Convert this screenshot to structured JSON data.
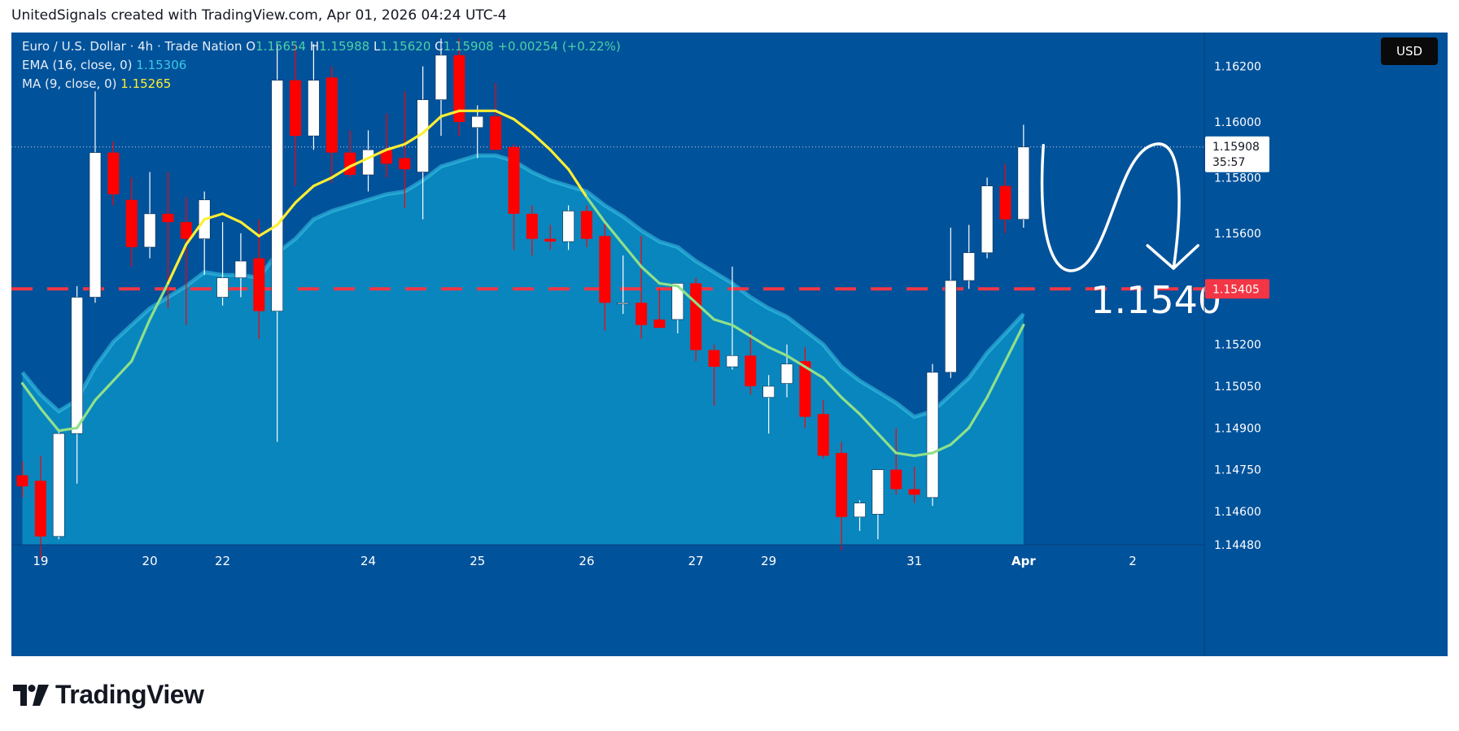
{
  "caption": "UnitedSignals created with TradingView.com, Apr 01, 2026 04:24 UTC-4",
  "brand": "TradingView",
  "currency_button": "USD",
  "legend": {
    "symbol": "Euro / U.S. Dollar · 4h · Trade Nation",
    "o_label": "O",
    "o": "1.15654",
    "h_label": "H",
    "h": "1.15988",
    "l_label": "L",
    "l": "1.15620",
    "c_label": "C",
    "c": "1.15908",
    "change": "+0.00254 (+0.22%)",
    "ema_label": "EMA (16, close, 0)",
    "ema_value": "1.15306",
    "ma_label": "MA (9, close, 0)",
    "ma_value": "1.15265"
  },
  "annotation": {
    "target_text": "1.1540"
  },
  "colors": {
    "background": "#00529b",
    "up_candle": "#ffffff",
    "down_candle": "#ff0000",
    "ema": "#3cc8e8",
    "ma_above": "#ffee33",
    "ma_below": "#90e08a",
    "level_line": "#f23645",
    "price_tag": "#f23645"
  },
  "chart_data": {
    "type": "candlestick",
    "symbol": "EURUSD",
    "timeframe": "4h",
    "ylim": [
      1.144,
      1.163
    ],
    "y_ticks": [
      "1.16200",
      "1.16000",
      "1.15800",
      "1.15600",
      "1.15200",
      "1.15050",
      "1.14900",
      "1.14750",
      "1.14600",
      "1.14480"
    ],
    "x_ticks": [
      {
        "label": "19",
        "index": 1
      },
      {
        "label": "20",
        "index": 7
      },
      {
        "label": "22",
        "index": 11
      },
      {
        "label": "24",
        "index": 19
      },
      {
        "label": "25",
        "index": 25
      },
      {
        "label": "26",
        "index": 31
      },
      {
        "label": "27",
        "index": 37
      },
      {
        "label": "29",
        "index": 41
      },
      {
        "label": "31",
        "index": 49
      },
      {
        "label": "Apr",
        "index": 55
      },
      {
        "label": "2",
        "index": 61
      }
    ],
    "candles": [
      {
        "o": 1.1473,
        "h": 1.1478,
        "l": 1.1465,
        "c": 1.1469
      },
      {
        "o": 1.1471,
        "h": 1.148,
        "l": 1.1443,
        "c": 1.1451
      },
      {
        "o": 1.1451,
        "h": 1.1489,
        "l": 1.145,
        "c": 1.1488
      },
      {
        "o": 1.1488,
        "h": 1.1541,
        "l": 1.147,
        "c": 1.1537
      },
      {
        "o": 1.1537,
        "h": 1.1611,
        "l": 1.1535,
        "c": 1.1589
      },
      {
        "o": 1.1589,
        "h": 1.1593,
        "l": 1.157,
        "c": 1.1574
      },
      {
        "o": 1.1572,
        "h": 1.158,
        "l": 1.1548,
        "c": 1.1555
      },
      {
        "o": 1.1555,
        "h": 1.1582,
        "l": 1.1551,
        "c": 1.1567
      },
      {
        "o": 1.1567,
        "h": 1.1582,
        "l": 1.1533,
        "c": 1.1564
      },
      {
        "o": 1.1564,
        "h": 1.1573,
        "l": 1.1527,
        "c": 1.1558
      },
      {
        "o": 1.1558,
        "h": 1.1575,
        "l": 1.1545,
        "c": 1.1572
      },
      {
        "o": 1.1537,
        "h": 1.1564,
        "l": 1.1534,
        "c": 1.1544
      },
      {
        "o": 1.1544,
        "h": 1.156,
        "l": 1.1537,
        "c": 1.155
      },
      {
        "o": 1.1551,
        "h": 1.1565,
        "l": 1.1522,
        "c": 1.1532
      },
      {
        "o": 1.1532,
        "h": 1.1628,
        "l": 1.1485,
        "c": 1.1615
      },
      {
        "o": 1.1615,
        "h": 1.1628,
        "l": 1.1577,
        "c": 1.1595
      },
      {
        "o": 1.1595,
        "h": 1.1628,
        "l": 1.159,
        "c": 1.1615
      },
      {
        "o": 1.1616,
        "h": 1.162,
        "l": 1.1578,
        "c": 1.1589
      },
      {
        "o": 1.1589,
        "h": 1.1597,
        "l": 1.158,
        "c": 1.1581
      },
      {
        "o": 1.1581,
        "h": 1.1597,
        "l": 1.1575,
        "c": 1.159
      },
      {
        "o": 1.159,
        "h": 1.1603,
        "l": 1.158,
        "c": 1.1585
      },
      {
        "o": 1.1587,
        "h": 1.1611,
        "l": 1.1569,
        "c": 1.1583
      },
      {
        "o": 1.1582,
        "h": 1.162,
        "l": 1.1565,
        "c": 1.1608
      },
      {
        "o": 1.1608,
        "h": 1.163,
        "l": 1.1595,
        "c": 1.1624
      },
      {
        "o": 1.1624,
        "h": 1.163,
        "l": 1.1595,
        "c": 1.16
      },
      {
        "o": 1.1598,
        "h": 1.1606,
        "l": 1.1587,
        "c": 1.1602
      },
      {
        "o": 1.1602,
        "h": 1.1614,
        "l": 1.159,
        "c": 1.159
      },
      {
        "o": 1.1591,
        "h": 1.1592,
        "l": 1.1554,
        "c": 1.1567
      },
      {
        "o": 1.1567,
        "h": 1.157,
        "l": 1.1552,
        "c": 1.1558
      },
      {
        "o": 1.1558,
        "h": 1.1563,
        "l": 1.1554,
        "c": 1.1557
      },
      {
        "o": 1.1557,
        "h": 1.157,
        "l": 1.1554,
        "c": 1.1568
      },
      {
        "o": 1.1568,
        "h": 1.157,
        "l": 1.1555,
        "c": 1.1558
      },
      {
        "o": 1.1559,
        "h": 1.1565,
        "l": 1.1525,
        "c": 1.1535
      },
      {
        "o": 1.1535,
        "h": 1.1552,
        "l": 1.1531,
        "c": 1.1535
      },
      {
        "o": 1.1535,
        "h": 1.1559,
        "l": 1.1522,
        "c": 1.1527
      },
      {
        "o": 1.1529,
        "h": 1.154,
        "l": 1.1526,
        "c": 1.1526
      },
      {
        "o": 1.1529,
        "h": 1.1542,
        "l": 1.1524,
        "c": 1.1542
      },
      {
        "o": 1.1542,
        "h": 1.1544,
        "l": 1.1514,
        "c": 1.1518
      },
      {
        "o": 1.1518,
        "h": 1.152,
        "l": 1.1498,
        "c": 1.1512
      },
      {
        "o": 1.1512,
        "h": 1.1548,
        "l": 1.1511,
        "c": 1.1516
      },
      {
        "o": 1.1516,
        "h": 1.1525,
        "l": 1.1502,
        "c": 1.1505
      },
      {
        "o": 1.1501,
        "h": 1.1509,
        "l": 1.1488,
        "c": 1.1505
      },
      {
        "o": 1.1506,
        "h": 1.152,
        "l": 1.1501,
        "c": 1.1513
      },
      {
        "o": 1.1514,
        "h": 1.1519,
        "l": 1.149,
        "c": 1.1494
      },
      {
        "o": 1.1495,
        "h": 1.15,
        "l": 1.1479,
        "c": 1.148
      },
      {
        "o": 1.1481,
        "h": 1.1485,
        "l": 1.1446,
        "c": 1.1458
      },
      {
        "o": 1.1458,
        "h": 1.1464,
        "l": 1.1453,
        "c": 1.1463
      },
      {
        "o": 1.1459,
        "h": 1.1475,
        "l": 1.145,
        "c": 1.1475
      },
      {
        "o": 1.1475,
        "h": 1.149,
        "l": 1.1466,
        "c": 1.1468
      },
      {
        "o": 1.1468,
        "h": 1.1476,
        "l": 1.1463,
        "c": 1.1466
      },
      {
        "o": 1.1465,
        "h": 1.1513,
        "l": 1.1462,
        "c": 1.151
      },
      {
        "o": 1.151,
        "h": 1.1562,
        "l": 1.1508,
        "c": 1.1543
      },
      {
        "o": 1.1543,
        "h": 1.1563,
        "l": 1.154,
        "c": 1.1553
      },
      {
        "o": 1.1553,
        "h": 1.158,
        "l": 1.1551,
        "c": 1.1577
      },
      {
        "o": 1.1577,
        "h": 1.1585,
        "l": 1.156,
        "c": 1.1565
      },
      {
        "o": 1.1565,
        "h": 1.1599,
        "l": 1.1562,
        "c": 1.1591
      }
    ],
    "ema_16": [
      1.151,
      1.1502,
      1.1496,
      1.15,
      1.1512,
      1.1521,
      1.1527,
      1.1533,
      1.1537,
      1.1541,
      1.1546,
      1.1545,
      1.1545,
      1.1544,
      1.1553,
      1.1558,
      1.1565,
      1.1568,
      1.157,
      1.1572,
      1.1574,
      1.1575,
      1.1579,
      1.1584,
      1.1586,
      1.1588,
      1.1588,
      1.1586,
      1.1582,
      1.1579,
      1.1577,
      1.1575,
      1.157,
      1.1566,
      1.1561,
      1.1557,
      1.1555,
      1.155,
      1.1546,
      1.1542,
      1.1537,
      1.1533,
      1.153,
      1.1525,
      1.152,
      1.1512,
      1.1507,
      1.1503,
      1.1499,
      1.1494,
      1.1496,
      1.1502,
      1.1508,
      1.1517,
      1.1524,
      1.1531
    ],
    "ma_9": [
      1.1506,
      1.1497,
      1.1489,
      1.149,
      1.15,
      1.1507,
      1.1514,
      1.1529,
      1.1542,
      1.1556,
      1.1565,
      1.1567,
      1.1564,
      1.1559,
      1.1563,
      1.1571,
      1.1577,
      1.158,
      1.1584,
      1.1587,
      1.159,
      1.1592,
      1.1596,
      1.1602,
      1.1604,
      1.1604,
      1.1604,
      1.1601,
      1.1596,
      1.159,
      1.1583,
      1.1573,
      1.1564,
      1.1556,
      1.1548,
      1.1542,
      1.1541,
      1.1535,
      1.1529,
      1.1527,
      1.1523,
      1.1519,
      1.1516,
      1.1512,
      1.1508,
      1.1501,
      1.1495,
      1.1488,
      1.1481,
      1.148,
      1.1481,
      1.1484,
      1.149,
      1.1501,
      1.1514,
      1.1527
    ],
    "level_line": 1.154,
    "current_price": "1.15908",
    "countdown": "35:57",
    "level_tag": "1.15405"
  }
}
